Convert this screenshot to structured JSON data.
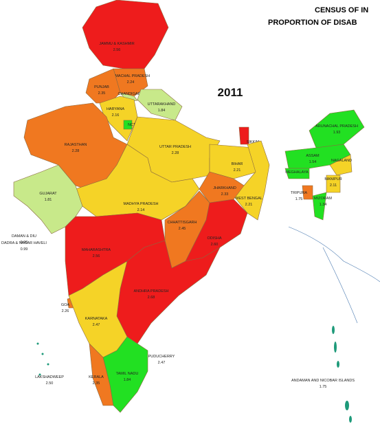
{
  "title": {
    "line1": "CENSUS OF IN",
    "line2": "PROPORTION OF DISAB"
  },
  "year": "2011",
  "regions": [
    {
      "name": "JAMMU & KASHMIR",
      "value": "2.56",
      "color": "#ee1c1c"
    },
    {
      "name": "HIMACHAL PRADESH",
      "value": "2.24",
      "color": "#f07820"
    },
    {
      "name": "PUNJAB",
      "value": "2.35",
      "color": "#f07820"
    },
    {
      "name": "CHANDIGARH",
      "color": "#c8e98a"
    },
    {
      "name": "UTTARAKHAND",
      "value": "1.84",
      "color": "#c8e98a"
    },
    {
      "name": "HARYANA",
      "value": "2.16",
      "color": "#f5d327"
    },
    {
      "name": "NCT OF DELHI",
      "value": "1.40",
      "color": "#22e022"
    },
    {
      "name": "RAJASTHAN",
      "value": "2.28",
      "color": "#f07820"
    },
    {
      "name": "UTTAR PRADESH",
      "value": "2.28",
      "color": "#f5d327"
    },
    {
      "name": "SIKKIM",
      "value": "2.55",
      "color": "#ee1c1c"
    },
    {
      "name": "BIHAR",
      "value": "2.21",
      "color": "#f5d327"
    },
    {
      "name": "WEST BENGAL",
      "value": "2.21",
      "color": "#f5d327"
    },
    {
      "name": "JHARKHAND",
      "value": "2.33",
      "color": "#f07820"
    },
    {
      "name": "MADHYA PRADESH",
      "value": "2.14",
      "color": "#f5d327"
    },
    {
      "name": "GUJARAT",
      "value": "1.81",
      "color": "#c8e98a"
    },
    {
      "name": "CHHATTISGARH",
      "value": "2.45",
      "color": "#f07820"
    },
    {
      "name": "ODISHA",
      "value": "2.60",
      "color": "#ee1c1c"
    },
    {
      "name": "MAHARASHTRA",
      "value": "2.56",
      "color": "#ee1c1c"
    },
    {
      "name": "ANDHRA PRADESH",
      "value": "2.68",
      "color": "#ee1c1c"
    },
    {
      "name": "GOA",
      "value": "2.26",
      "color": "#f07820"
    },
    {
      "name": "KARNATAKA",
      "value": "2.47",
      "color": "#f5d327"
    },
    {
      "name": "KERALA",
      "value": "2.35",
      "color": "#f07820"
    },
    {
      "name": "TAMIL NADU",
      "value": "1.84",
      "color": "#22e022"
    },
    {
      "name": "PUDUCHERRY",
      "value": "2.47",
      "color": "#f07820"
    },
    {
      "name": "ARUNACHAL PRADESH",
      "value": "1.93",
      "color": "#22e022"
    },
    {
      "name": "ASSAM",
      "value": "1.54",
      "color": "#22e022"
    },
    {
      "name": "MEGHALAYA",
      "color": "#22e022"
    },
    {
      "name": "NAGALAND",
      "color": "#f5d327"
    },
    {
      "name": "MANIPUR",
      "value": "2.11",
      "color": "#f5d327"
    },
    {
      "name": "TRIPURA",
      "value": "1.75",
      "color": "#f07820"
    },
    {
      "name": "MIZORAM",
      "value": "1.34",
      "color": "#22e022"
    },
    {
      "name": "DAMAN & DIU",
      "value": "0.90",
      "color": "#22e022"
    },
    {
      "name": "DADRA & NAGAR HAVELI",
      "value": "0.99",
      "color": "#22e022"
    },
    {
      "name": "LAKSHADWEEP",
      "value": "2.50",
      "color": "#f07820"
    },
    {
      "name": "ANDAMAN AND NICOBAR ISLANDS",
      "value": "1.75",
      "color": "#22e022"
    }
  ]
}
